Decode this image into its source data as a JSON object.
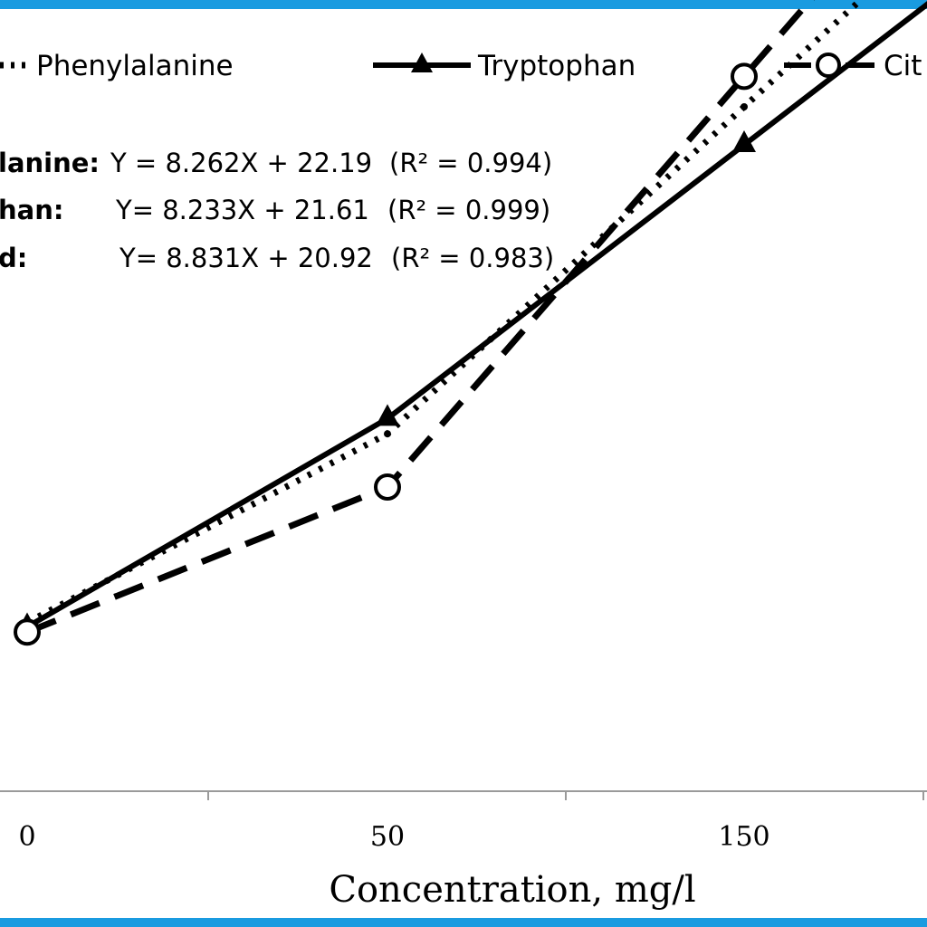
{
  "colors": {
    "frame": "#1a9be0",
    "series": "#000000",
    "axis": "#9a9a9a",
    "background": "#ffffff"
  },
  "chart_data": {
    "type": "line",
    "xlabel": "Concentration, mg/l",
    "ylabel": "",
    "x_tick_labels": [
      "0",
      "50",
      "150"
    ],
    "legend_position": "top",
    "grid": false,
    "series": [
      {
        "name": "Phenylalanine",
        "line_style": "dotted",
        "marker": "none",
        "equation": "Y = 8.262X + 22.19",
        "r2": "(R² = 0.994)",
        "equation_label": "lanine:",
        "points": [
          {
            "x": "0",
            "y": 22.19
          },
          {
            "x": "50",
            "y": 47
          },
          {
            "x": "150",
            "y": 90
          }
        ]
      },
      {
        "name": "Tryptophan",
        "line_style": "solid",
        "marker": "triangle",
        "equation": "Y= 8.233X + 21.61",
        "r2": "(R² = 0.999)",
        "equation_label": "han:",
        "points": [
          {
            "x": "0",
            "y": 21.61
          },
          {
            "x": "50",
            "y": 49
          },
          {
            "x": "150",
            "y": 85
          }
        ]
      },
      {
        "name": "Cit",
        "line_style": "dashed",
        "marker": "open-circle",
        "equation": "Y= 8.831X + 20.92",
        "r2": "(R² = 0.983)",
        "equation_label": "d:",
        "points": [
          {
            "x": "0",
            "y": 20.92
          },
          {
            "x": "50",
            "y": 40
          },
          {
            "x": "150",
            "y": 94
          }
        ]
      }
    ]
  }
}
